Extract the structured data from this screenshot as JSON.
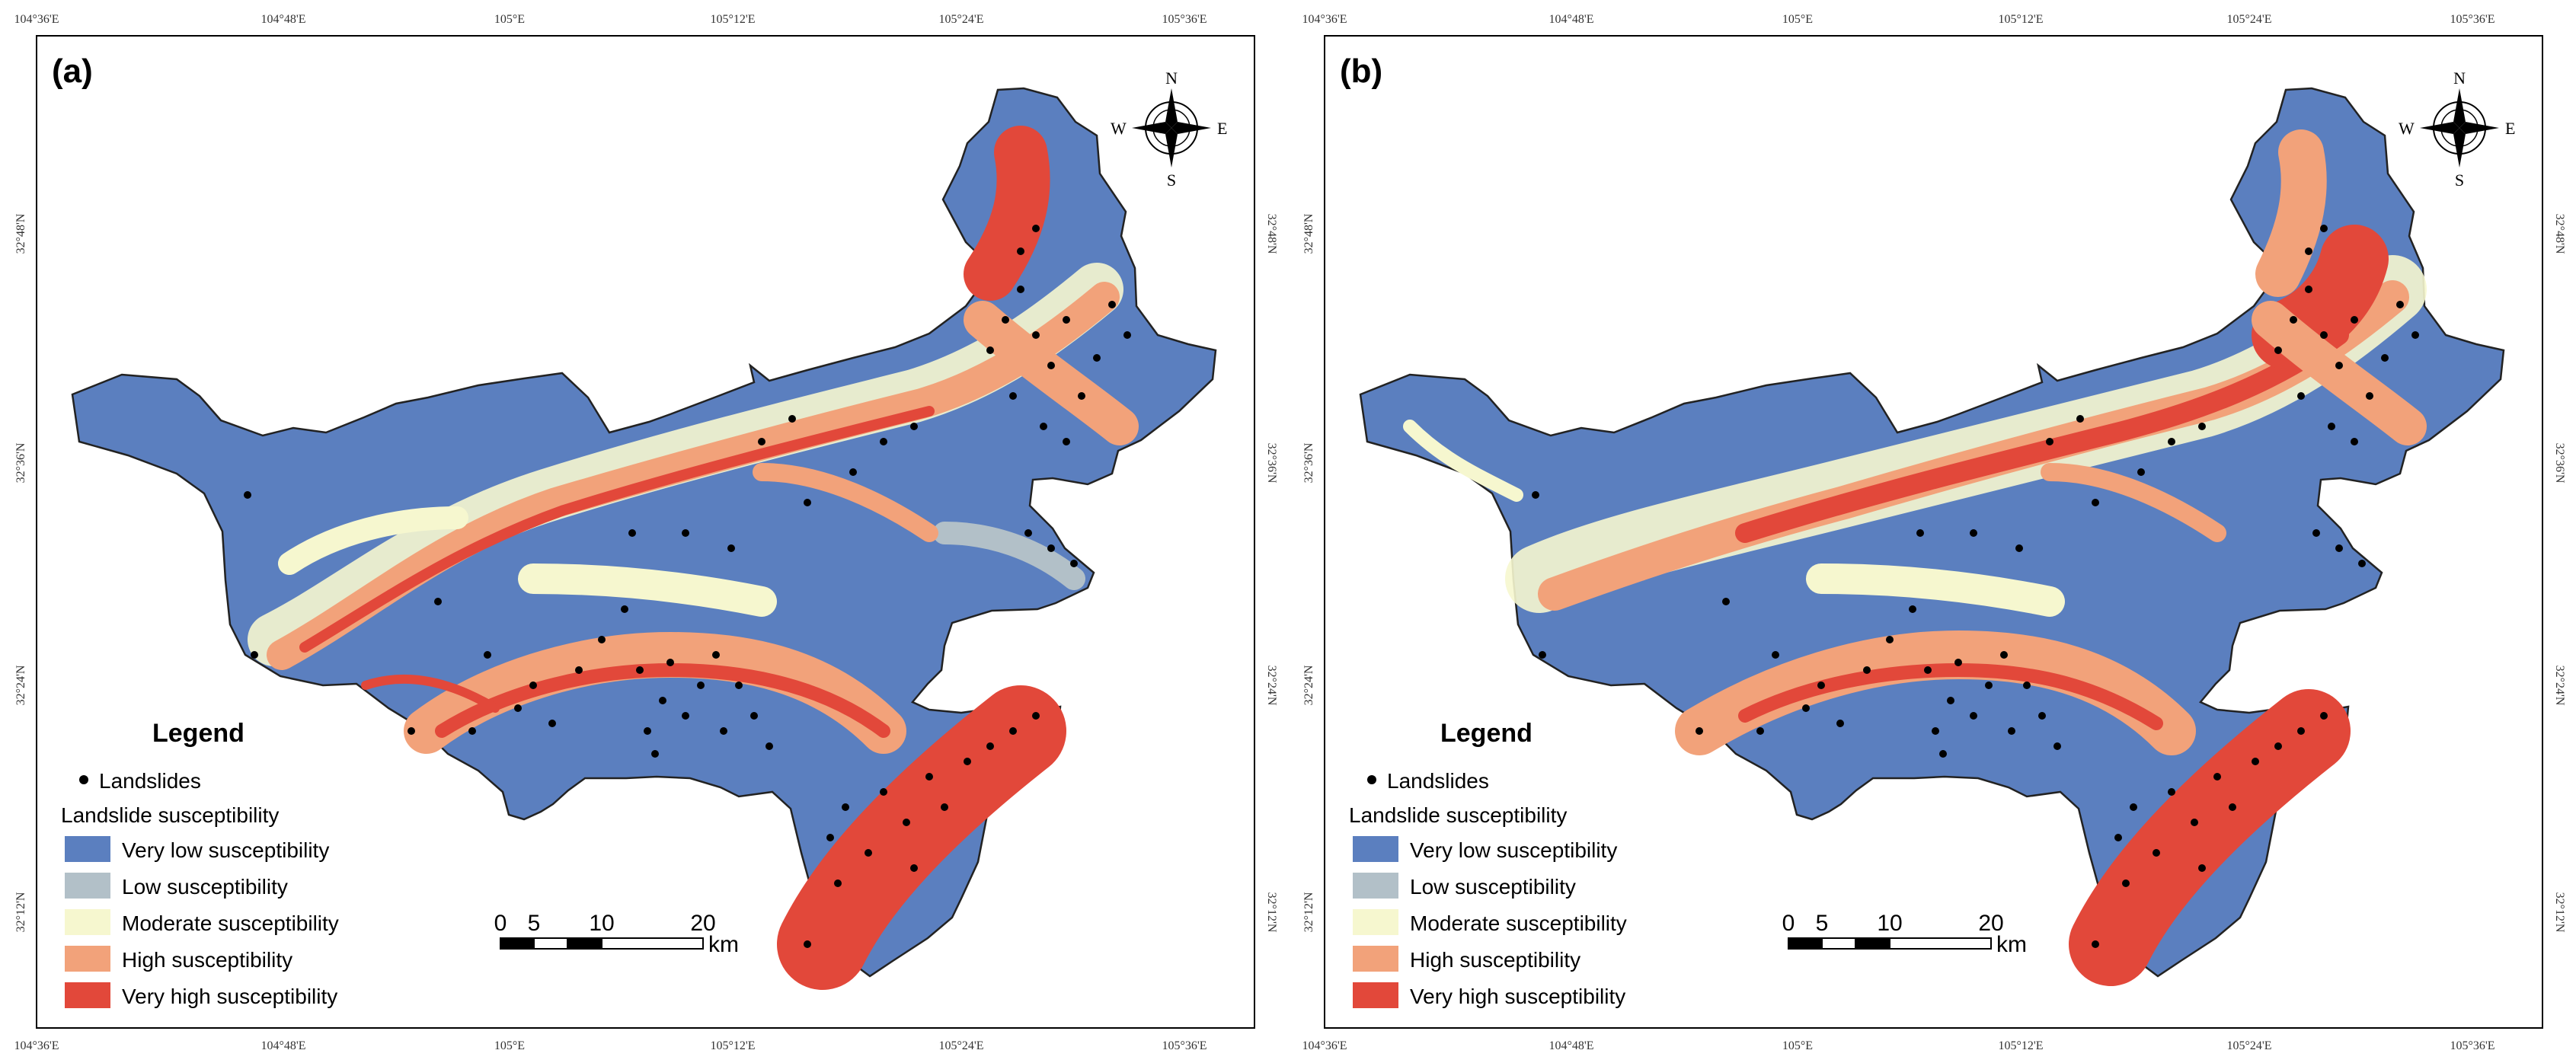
{
  "panels": [
    {
      "label": "(a)",
      "lon_ticks": [
        "104°36'E",
        "104°48'E",
        "105°E",
        "105°12'E",
        "105°24'E",
        "105°36'E"
      ],
      "lat_ticks": [
        "32°48'N",
        "32°36'N",
        "32°24'N",
        "32°12'N"
      ]
    },
    {
      "label": "(b)",
      "lon_ticks": [
        "104°36'E",
        "104°48'E",
        "105°E",
        "105°12'E",
        "105°24'E",
        "105°36'E"
      ],
      "lat_ticks": [
        "32°48'N",
        "32°36'N",
        "32°24'N",
        "32°12'N"
      ]
    }
  ],
  "compass": {
    "n": "N",
    "s": "S",
    "e": "E",
    "w": "W"
  },
  "legend": {
    "title": "Legend",
    "points_label": "Landslides",
    "subtitle": "Landslide susceptibility",
    "classes": [
      {
        "label": "Very low susceptibility",
        "color": "#5b7fbf"
      },
      {
        "label": "Low susceptibility",
        "color": "#b2c0c8"
      },
      {
        "label": "Moderate susceptibility",
        "color": "#f6f7cf"
      },
      {
        "label": "High susceptibility",
        "color": "#f2a27a"
      },
      {
        "label": "Very high susceptibility",
        "color": "#e2483a"
      }
    ]
  },
  "scale_bar": {
    "ticks": [
      "0",
      "5",
      "10",
      "20"
    ],
    "unit": "km"
  },
  "colors": {
    "boundary": "#222222",
    "points": "#000000"
  }
}
